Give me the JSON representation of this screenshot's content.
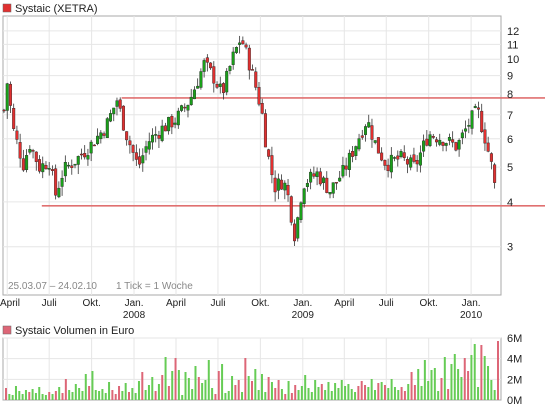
{
  "chart_data": [
    {
      "type": "candlestick",
      "title": "Systaic (XETRA)",
      "range_label": "25.03.07 – 24.02.10",
      "tick_label": "1 Tick = 1 Woche",
      "y_scale": "log",
      "ylim": [
        2.2,
        13.2
      ],
      "y_ticks": [
        3,
        4,
        5,
        6,
        7,
        8,
        9,
        10,
        11,
        12
      ],
      "x_start": "2007-03-25",
      "x_end": "2010-02-24",
      "x_ticks": [
        {
          "date": "2007-04-01",
          "label": "April",
          "year": ""
        },
        {
          "date": "2007-07-01",
          "label": "Juli",
          "year": ""
        },
        {
          "date": "2007-10-01",
          "label": "Okt.",
          "year": ""
        },
        {
          "date": "2008-01-01",
          "label": "Jan.",
          "year": "2008"
        },
        {
          "date": "2008-04-01",
          "label": "April",
          "year": ""
        },
        {
          "date": "2008-07-01",
          "label": "Juli",
          "year": ""
        },
        {
          "date": "2008-10-01",
          "label": "Okt.",
          "year": ""
        },
        {
          "date": "2009-01-01",
          "label": "Jan.",
          "year": "2009"
        },
        {
          "date": "2009-04-01",
          "label": "April",
          "year": ""
        },
        {
          "date": "2009-07-01",
          "label": "Juli",
          "year": ""
        },
        {
          "date": "2009-10-01",
          "label": "Okt.",
          "year": ""
        },
        {
          "date": "2010-01-01",
          "label": "Jan.",
          "year": "2010"
        }
      ],
      "support_lines": [
        {
          "y": 7.8,
          "from": "2007-12-05",
          "to": "2010-02-24",
          "color": "#e07070"
        },
        {
          "y": 3.9,
          "from": "2007-06-15",
          "to": "2010-02-24",
          "color": "#e07070"
        }
      ],
      "up_color": "#1aa01a",
      "down_color": "#e03030",
      "price_anchors": [
        [
          "2007-03-25",
          7.2
        ],
        [
          "2007-04-01",
          8.6
        ],
        [
          "2007-04-15",
          6.3
        ],
        [
          "2007-05-06",
          5.1
        ],
        [
          "2007-05-20",
          5.8
        ],
        [
          "2007-06-10",
          5.0
        ],
        [
          "2007-07-01",
          5.2
        ],
        [
          "2007-07-15",
          4.2
        ],
        [
          "2007-08-01",
          4.9
        ],
        [
          "2007-09-01",
          5.3
        ],
        [
          "2007-10-01",
          5.8
        ],
        [
          "2007-11-01",
          6.5
        ],
        [
          "2007-11-25",
          7.7
        ],
        [
          "2007-12-15",
          6.2
        ],
        [
          "2008-01-10",
          5.0
        ],
        [
          "2008-02-01",
          5.9
        ],
        [
          "2008-03-01",
          6.4
        ],
        [
          "2008-04-01",
          6.8
        ],
        [
          "2008-05-01",
          7.7
        ],
        [
          "2008-06-01",
          9.7
        ],
        [
          "2008-06-20",
          9.0
        ],
        [
          "2008-07-10",
          8.0
        ],
        [
          "2008-08-01",
          10.0
        ],
        [
          "2008-08-20",
          11.5
        ],
        [
          "2008-09-10",
          9.5
        ],
        [
          "2008-09-25",
          8.0
        ],
        [
          "2008-10-05",
          7.0
        ],
        [
          "2008-10-15",
          5.6
        ],
        [
          "2008-11-01",
          4.4
        ],
        [
          "2008-11-20",
          4.6
        ],
        [
          "2008-12-01",
          4.1
        ],
        [
          "2008-12-15",
          3.2
        ],
        [
          "2009-01-01",
          4.5
        ],
        [
          "2009-02-01",
          4.8
        ],
        [
          "2009-03-01",
          4.3
        ],
        [
          "2009-04-01",
          4.9
        ],
        [
          "2009-05-01",
          6.0
        ],
        [
          "2009-05-20",
          6.8
        ],
        [
          "2009-06-10",
          5.7
        ],
        [
          "2009-07-01",
          5.1
        ],
        [
          "2009-08-01",
          5.3
        ],
        [
          "2009-09-01",
          5.0
        ],
        [
          "2009-10-01",
          6.2
        ],
        [
          "2009-11-01",
          6.0
        ],
        [
          "2009-12-01",
          5.7
        ],
        [
          "2010-01-01",
          6.8
        ],
        [
          "2010-01-15",
          7.2
        ],
        [
          "2010-02-01",
          6.0
        ],
        [
          "2010-02-15",
          5.0
        ],
        [
          "2010-02-24",
          4.2
        ]
      ]
    },
    {
      "type": "bar",
      "title": "Systaic Volumen in Euro",
      "ylim": [
        0,
        6000000
      ],
      "y_ticks": [
        {
          "value": 0,
          "label": "0M"
        },
        {
          "value": 2000000,
          "label": "2M"
        },
        {
          "value": 4000000,
          "label": "4M"
        },
        {
          "value": 6000000,
          "label": "6M"
        }
      ],
      "weekly_volume_millions": [
        1.2,
        0.6,
        0.5,
        1.4,
        0.9,
        0.6,
        1.0,
        0.8,
        1.1,
        0.7,
        1.3,
        0.6,
        0.5,
        0.8,
        0.6,
        0.9,
        1.3,
        0.7,
        2.1,
        1.0,
        0.8,
        1.6,
        1.2,
        0.9,
        2.6,
        1.4,
        2.9,
        1.0,
        0.9,
        1.1,
        0.7,
        1.8,
        1.0,
        0.6,
        1.4,
        0.9,
        1.7,
        0.8,
        1.2,
        0.7,
        1.9,
        2.8,
        1.0,
        1.5,
        2.3,
        0.9,
        1.6,
        2.5,
        4.3,
        1.4,
        2.9,
        4.2,
        3.0,
        0.5,
        2.8,
        2.2,
        1.1,
        3.4,
        2.3,
        1.7,
        2.0,
        4.0,
        1.2,
        0.6,
        2.9,
        3.6,
        0.7,
        0.9,
        2.4,
        1.5,
        2.0,
        0.8,
        4.2,
        2.4,
        1.9,
        3.1,
        1.0,
        2.6,
        0.8,
        2.3,
        1.8,
        1.2,
        2.0,
        1.1,
        0.6,
        1.9,
        0.7,
        1.5,
        1.0,
        1.4,
        2.5,
        1.2,
        0.8,
        2.0,
        1.3,
        1.6,
        1.0,
        1.8,
        0.9,
        1.7,
        1.2,
        2.0,
        1.4,
        1.6,
        1.1,
        0.8,
        1.4,
        1.9,
        1.5,
        1.3,
        2.1,
        1.0,
        1.7,
        1.8,
        1.5,
        1.2,
        2.1,
        1.3,
        1.0,
        1.3,
        0.9,
        1.6,
        2.8,
        1.5,
        3.1,
        1.4,
        4.0,
        1.9,
        3.0,
        3.2,
        0.9,
        2.2,
        4.3,
        1.1,
        3.6,
        4.6,
        3.1,
        2.3,
        4.2,
        2.9,
        4.5,
        5.6,
        1.3,
        5.5,
        4.4,
        3.4,
        2.0,
        1.0,
        5.9
      ],
      "up_color": "#66cc55",
      "down_color": "#dd6677"
    }
  ]
}
